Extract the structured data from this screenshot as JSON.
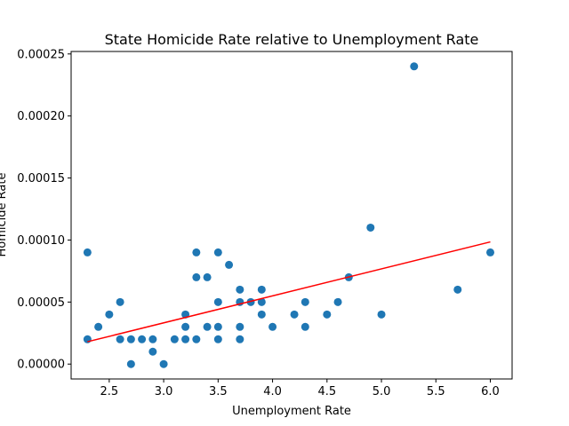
{
  "chart_data": {
    "type": "scatter",
    "title": "State Homicide Rate relative to Unemployment Rate",
    "xlabel": "Unemployment Rate",
    "ylabel": "Homicide Rate",
    "xlim": [
      2.15,
      6.2
    ],
    "ylim": [
      -1.2e-05,
      0.000252
    ],
    "xticks": [
      2.5,
      3.0,
      3.5,
      4.0,
      4.5,
      5.0,
      5.5,
      6.0
    ],
    "xtick_labels": [
      "2.5",
      "3.0",
      "3.5",
      "4.0",
      "4.5",
      "5.0",
      "5.5",
      "6.0"
    ],
    "yticks": [
      0,
      5e-05,
      0.0001,
      0.00015,
      0.0002,
      0.00025
    ],
    "ytick_labels": [
      "0.00000",
      "0.00005",
      "0.00010",
      "0.00015",
      "0.00020",
      "0.00025"
    ],
    "grid": false,
    "marker_color": "#1f77b4",
    "trendline_color": "#ff0000",
    "points": [
      [
        2.3,
        9e-05
      ],
      [
        2.3,
        2e-05
      ],
      [
        2.4,
        3e-05
      ],
      [
        2.5,
        4e-05
      ],
      [
        2.6,
        5e-05
      ],
      [
        2.6,
        2e-05
      ],
      [
        2.7,
        2e-05
      ],
      [
        2.7,
        0.0
      ],
      [
        2.8,
        2e-05
      ],
      [
        2.9,
        2e-05
      ],
      [
        2.9,
        1e-05
      ],
      [
        3.0,
        0.0
      ],
      [
        3.1,
        2e-05
      ],
      [
        3.2,
        4e-05
      ],
      [
        3.2,
        3e-05
      ],
      [
        3.2,
        2e-05
      ],
      [
        3.3,
        9e-05
      ],
      [
        3.3,
        7e-05
      ],
      [
        3.3,
        2e-05
      ],
      [
        3.4,
        7e-05
      ],
      [
        3.4,
        3e-05
      ],
      [
        3.5,
        9e-05
      ],
      [
        3.5,
        5e-05
      ],
      [
        3.5,
        3e-05
      ],
      [
        3.5,
        2e-05
      ],
      [
        3.6,
        8e-05
      ],
      [
        3.7,
        6e-05
      ],
      [
        3.7,
        5e-05
      ],
      [
        3.7,
        3e-05
      ],
      [
        3.7,
        2e-05
      ],
      [
        3.8,
        5e-05
      ],
      [
        3.9,
        6e-05
      ],
      [
        3.9,
        5e-05
      ],
      [
        3.9,
        4e-05
      ],
      [
        4.0,
        3e-05
      ],
      [
        4.2,
        4e-05
      ],
      [
        4.3,
        5e-05
      ],
      [
        4.3,
        3e-05
      ],
      [
        4.5,
        4e-05
      ],
      [
        4.6,
        5e-05
      ],
      [
        4.7,
        7e-05
      ],
      [
        4.9,
        0.00011
      ],
      [
        5.0,
        4e-05
      ],
      [
        5.3,
        0.00024
      ],
      [
        5.7,
        6e-05
      ],
      [
        6.0,
        9e-05
      ]
    ],
    "trendline": [
      [
        2.3,
        1.8e-05
      ],
      [
        6.0,
        9.85e-05
      ]
    ]
  }
}
